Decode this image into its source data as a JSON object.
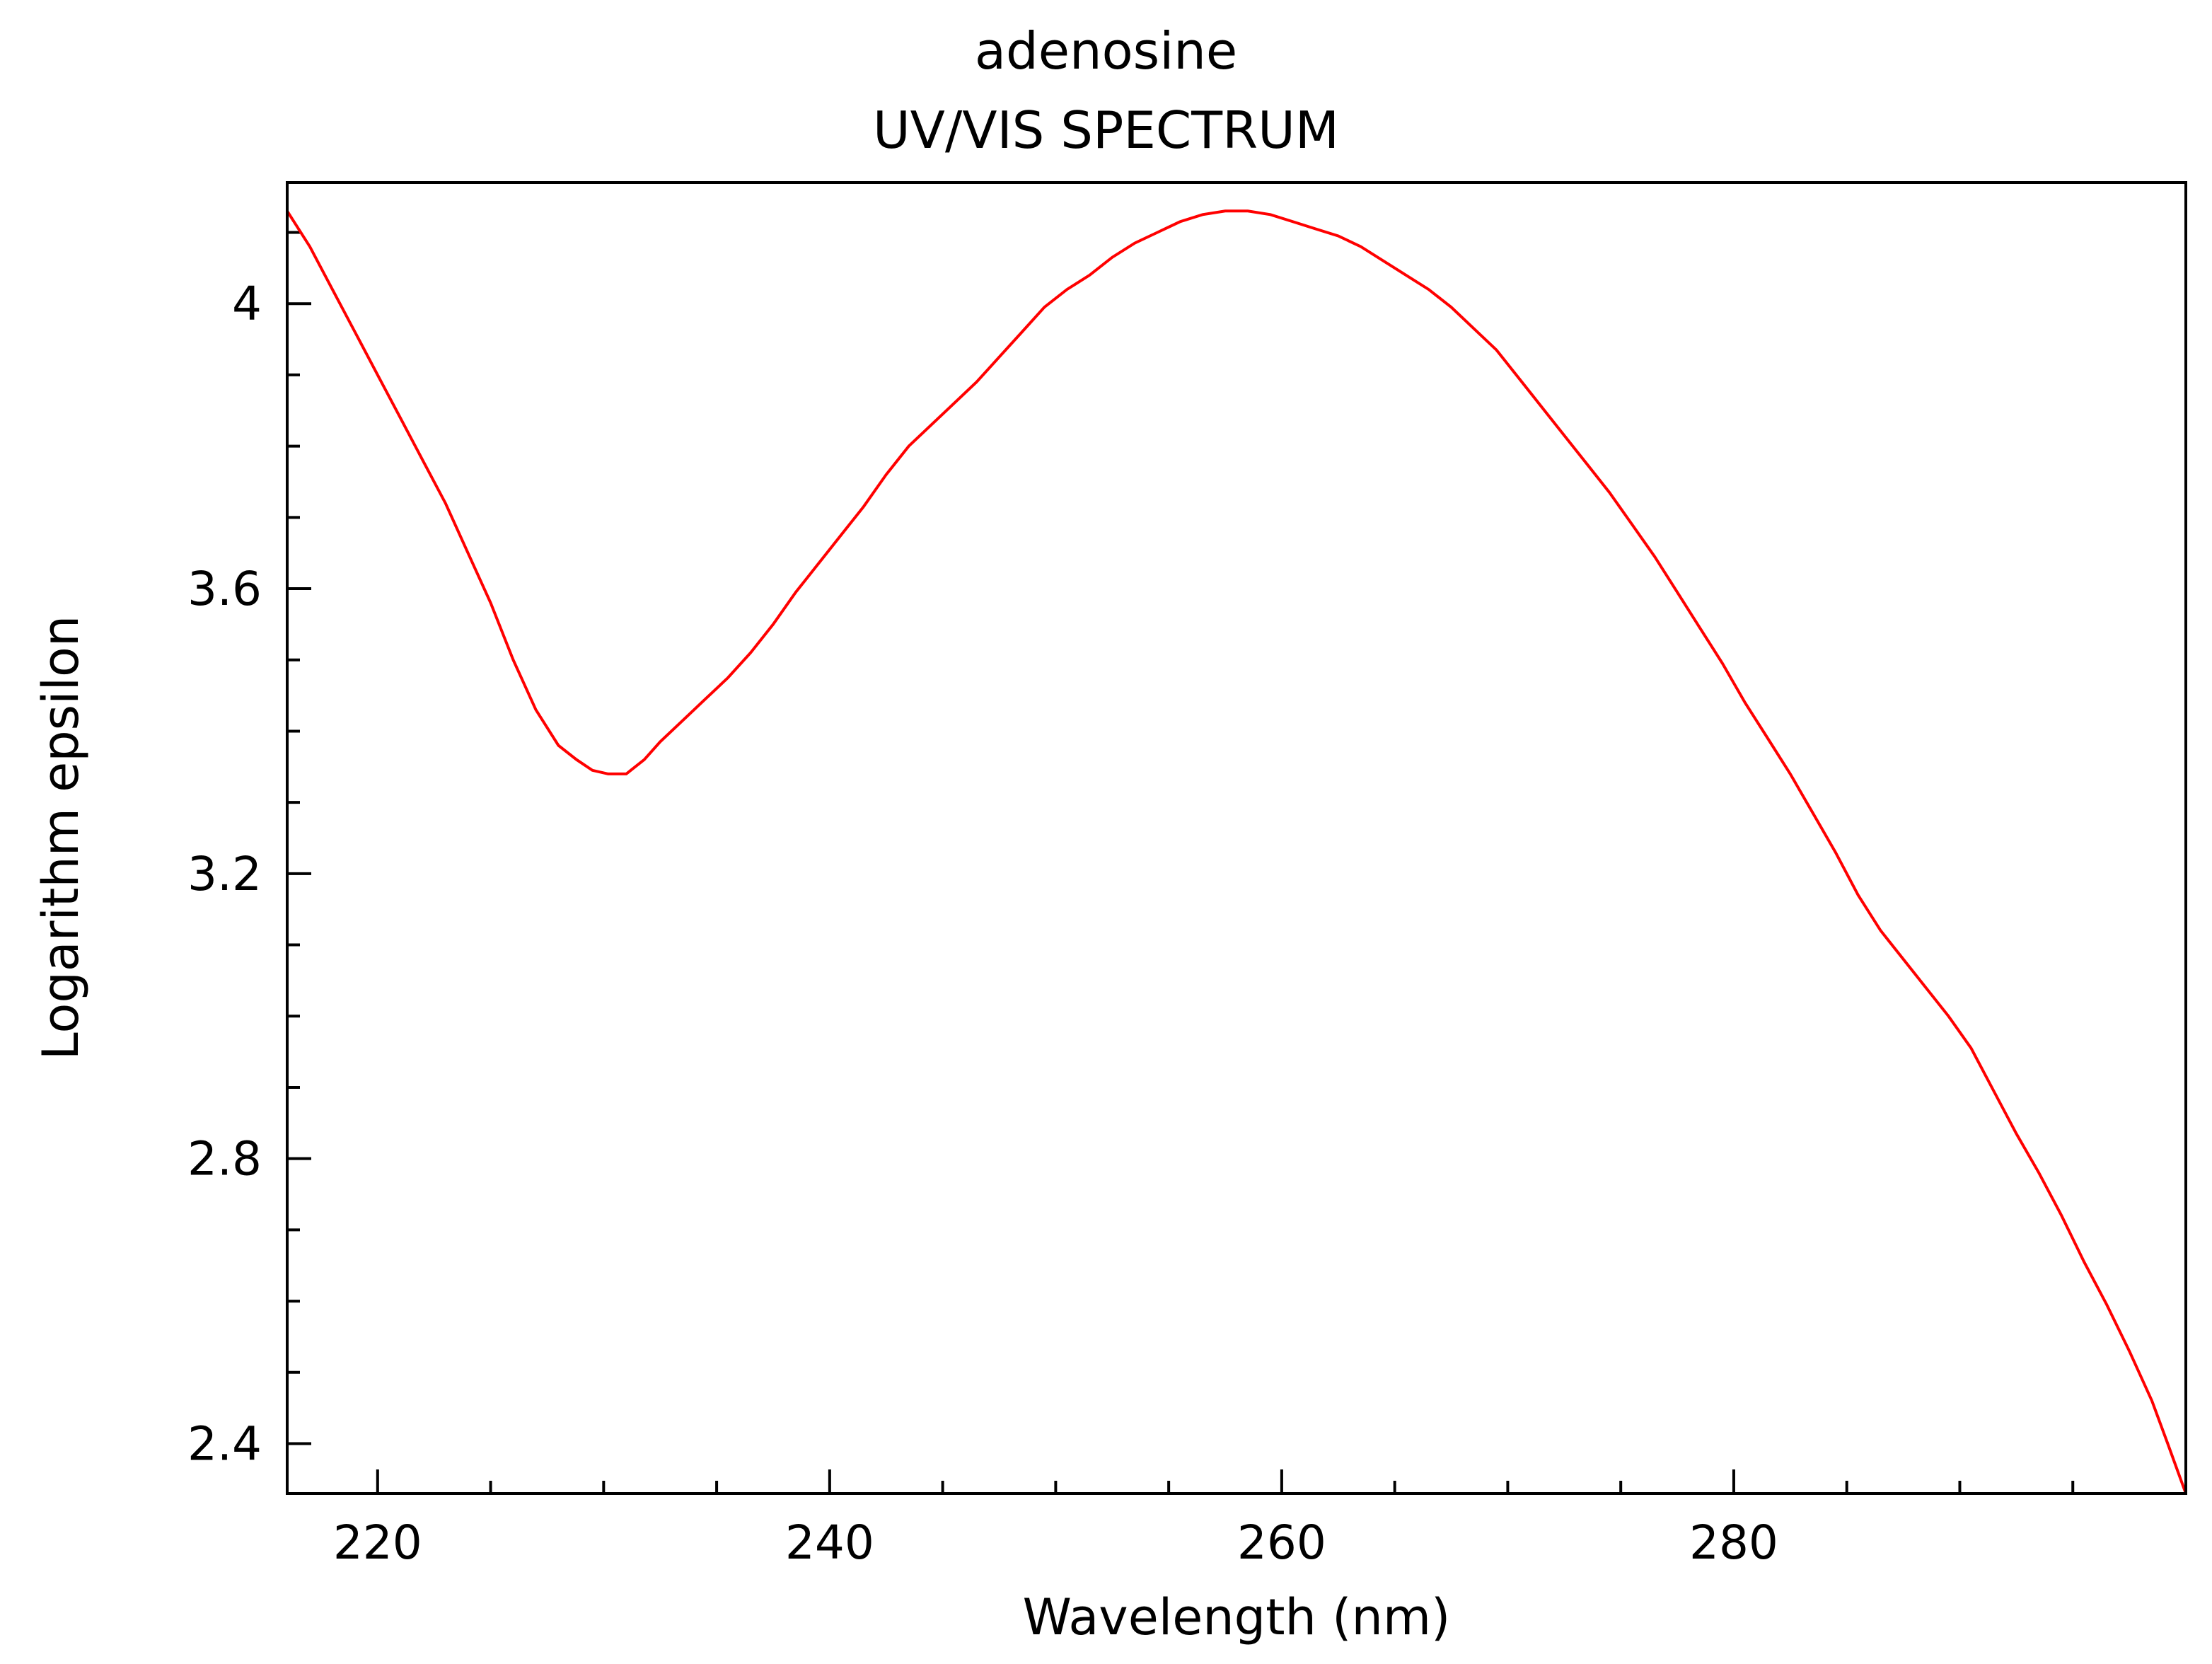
{
  "chart_data": {
    "type": "line",
    "title": "adenosine",
    "subtitle": "UV/VIS SPECTRUM",
    "xlabel": "Wavelength (nm)",
    "ylabel": "Logarithm epsilon",
    "xlim": [
      216,
      300
    ],
    "ylim": [
      2.33,
      4.17
    ],
    "xticks": [
      220,
      240,
      260,
      280
    ],
    "xtick_labels": [
      "220",
      "240",
      "260",
      "280"
    ],
    "yticks": [
      2.4,
      2.8,
      3.2,
      3.6,
      4.0
    ],
    "ytick_labels": [
      "2.4",
      "2.8",
      "3.2",
      "3.6",
      "4"
    ],
    "grid": false,
    "line_color": "#ff0000",
    "series": [
      {
        "x": [
          216,
          217,
          218,
          219,
          220,
          221,
          222,
          223,
          224,
          225,
          226,
          227,
          228,
          228.8,
          229.5,
          230.2,
          231,
          231.8,
          232.5,
          233.5,
          234.5,
          235.5,
          236.5,
          237.5,
          238.5,
          239.5,
          240.5,
          241.5,
          242.5,
          243.5,
          244.5,
          245.5,
          246.5,
          247.5,
          248.5,
          249.5,
          250.5,
          251.5,
          252.5,
          253.5,
          254.5,
          255.5,
          256.5,
          257.5,
          258.5,
          259.5,
          260.5,
          261.5,
          262.5,
          263.5,
          264.5,
          265.5,
          266.5,
          267.5,
          268.5,
          269.5,
          270.5,
          271.5,
          272.5,
          273.5,
          274.5,
          275.5,
          276.5,
          277.5,
          278.5,
          279.5,
          280.5,
          281.5,
          282.5,
          283.5,
          284.5,
          285.5,
          286.5,
          287.5,
          288.5,
          289.5,
          290.5,
          291.5,
          292.5,
          293.5,
          294.5,
          295.5,
          296.5,
          297.5,
          298.5,
          299.2,
          300
        ],
        "y": [
          4.13,
          4.08,
          4.02,
          3.96,
          3.9,
          3.84,
          3.78,
          3.72,
          3.65,
          3.58,
          3.5,
          3.43,
          3.38,
          3.36,
          3.345,
          3.34,
          3.34,
          3.36,
          3.385,
          3.415,
          3.445,
          3.475,
          3.51,
          3.55,
          3.595,
          3.635,
          3.675,
          3.715,
          3.76,
          3.8,
          3.83,
          3.86,
          3.89,
          3.925,
          3.96,
          3.995,
          4.02,
          4.04,
          4.065,
          4.085,
          4.1,
          4.115,
          4.125,
          4.13,
          4.13,
          4.125,
          4.115,
          4.105,
          4.095,
          4.08,
          4.06,
          4.04,
          4.02,
          3.995,
          3.965,
          3.935,
          3.895,
          3.855,
          3.815,
          3.775,
          3.735,
          3.69,
          3.645,
          3.595,
          3.545,
          3.495,
          3.44,
          3.39,
          3.34,
          3.285,
          3.23,
          3.17,
          3.12,
          3.08,
          3.04,
          3.0,
          2.955,
          2.895,
          2.835,
          2.78,
          2.72,
          2.655,
          2.595,
          2.53,
          2.46,
          2.4,
          2.33
        ]
      }
    ]
  }
}
